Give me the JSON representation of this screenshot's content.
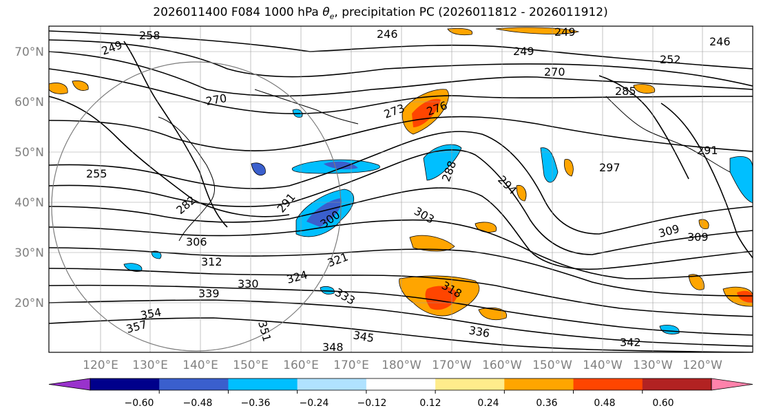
{
  "title": {
    "prefix": "2026011400 F084 1000 hPa ",
    "theta": "θ",
    "theta_sub": "e",
    "suffix": ", precipitation PC (2026011812 - 2026011912)"
  },
  "map": {
    "latitude_labels": [
      "70°N",
      "60°N",
      "50°N",
      "40°N",
      "30°N",
      "20°N"
    ],
    "latitude_values": [
      70,
      60,
      50,
      40,
      30,
      20
    ],
    "longitude_labels": [
      "120°E",
      "130°E",
      "140°E",
      "150°E",
      "160°E",
      "170°E",
      "180°W",
      "170°W",
      "160°W",
      "150°W",
      "140°W",
      "130°W",
      "120°W"
    ],
    "contour_labels": [
      {
        "text": "258"
      },
      {
        "text": "249"
      },
      {
        "text": "246"
      },
      {
        "text": "249"
      },
      {
        "text": "249"
      },
      {
        "text": "246"
      },
      {
        "text": "252"
      },
      {
        "text": "270"
      },
      {
        "text": "270"
      },
      {
        "text": "285"
      },
      {
        "text": "273"
      },
      {
        "text": "276"
      },
      {
        "text": "288"
      },
      {
        "text": "297"
      },
      {
        "text": "291"
      },
      {
        "text": "294"
      },
      {
        "text": "291"
      },
      {
        "text": "300"
      },
      {
        "text": "303"
      },
      {
        "text": "282"
      },
      {
        "text": "255"
      },
      {
        "text": "306"
      },
      {
        "text": "312"
      },
      {
        "text": "321"
      },
      {
        "text": "324"
      },
      {
        "text": "330"
      },
      {
        "text": "339"
      },
      {
        "text": "333"
      },
      {
        "text": "318"
      },
      {
        "text": "309"
      },
      {
        "text": "309"
      },
      {
        "text": "354"
      },
      {
        "text": "357"
      },
      {
        "text": "351"
      },
      {
        "text": "345"
      },
      {
        "text": "348"
      },
      {
        "text": "336"
      },
      {
        "text": "342"
      }
    ]
  },
  "colorbar": {
    "tick_labels": [
      "−0.60",
      "−0.48",
      "−0.36",
      "−0.24",
      "−0.12",
      "0.12",
      "0.24",
      "0.36",
      "0.48",
      "0.60"
    ],
    "colors": [
      "#9932cc",
      "#00008b",
      "#3a5fcd",
      "#00bfff",
      "#b0e2ff",
      "#ffffff",
      "#ffec8b",
      "#ffa500",
      "#ff4500",
      "#b22222",
      "#ff82ab"
    ],
    "levels": [
      -0.6,
      -0.48,
      -0.36,
      -0.24,
      -0.12,
      0.12,
      0.24,
      0.36,
      0.48,
      0.6
    ]
  }
}
